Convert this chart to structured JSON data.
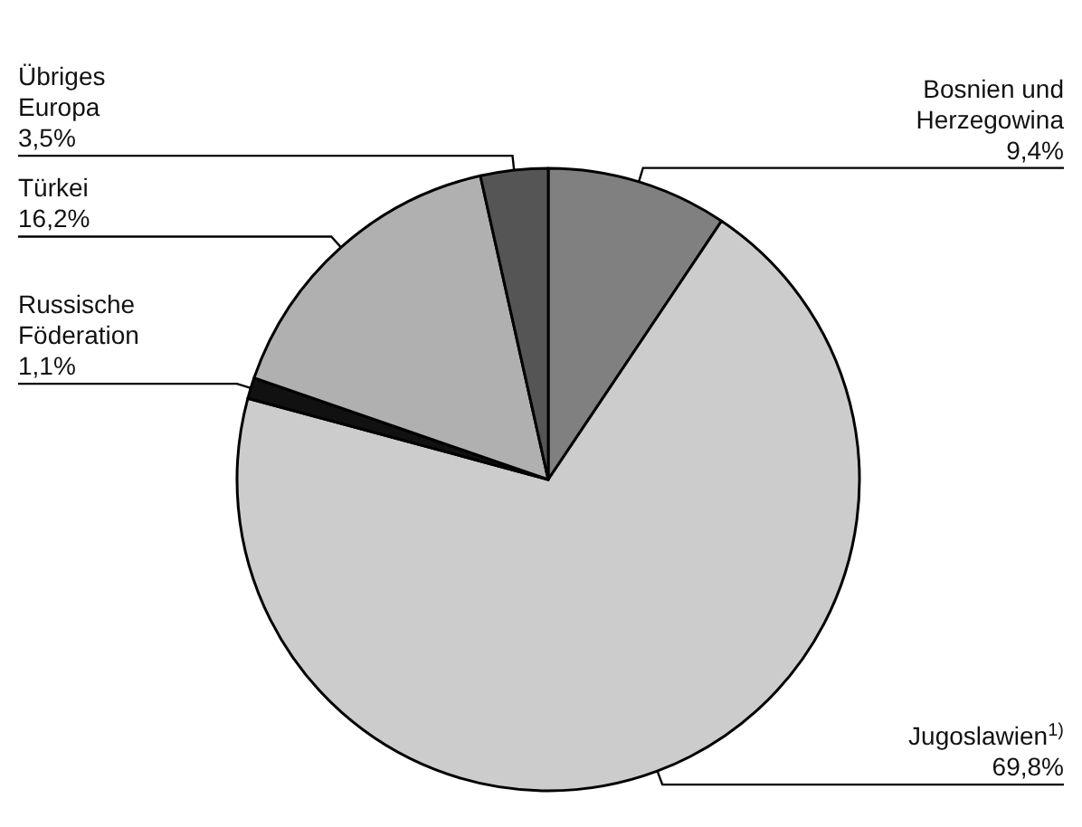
{
  "chart_data": {
    "type": "pie",
    "categories": [
      "Bosnien und Herzegowina",
      "Jugoslawien$^{1)}$",
      "Russische Föderation",
      "Türkei",
      "Übriges Europa"
    ],
    "values": [
      9.4,
      69.8,
      1.1,
      16.2,
      3.5
    ],
    "colors": [
      "#808080",
      "#cccccc",
      "#111111",
      "#b0b0b0",
      "#555555"
    ],
    "value_labels": [
      "9,4%",
      "69,8%",
      "1,1%",
      "16,2%",
      "3,5%"
    ]
  }
}
